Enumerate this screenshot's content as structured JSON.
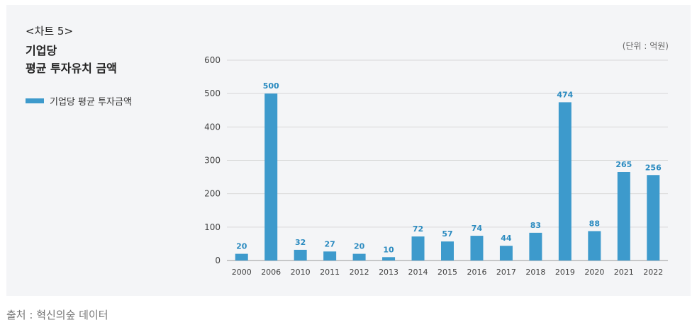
{
  "chart_label": "<차트 5>",
  "title_lines": [
    "기업당",
    "평균 투자유치 금액"
  ],
  "unit": "(단위 : 억원)",
  "source": "출처 : 혁신의숲 데이터",
  "colors": {
    "bar": "#3d9acc",
    "label": "#2b8bc0",
    "grid": "#d8d8d8",
    "panel": "#f4f5f7"
  },
  "chart_data": {
    "type": "bar",
    "title": "기업당 평균 투자유치 금액",
    "categories": [
      "2000",
      "2006",
      "2010",
      "2011",
      "2012",
      "2013",
      "2014",
      "2015",
      "2016",
      "2017",
      "2018",
      "2019",
      "2020",
      "2021",
      "2022"
    ],
    "series": [
      {
        "name": "기업당 평균 투자금액",
        "values": [
          20,
          500,
          32,
          27,
          20,
          10,
          72,
          57,
          74,
          44,
          83,
          474,
          88,
          265,
          256
        ],
        "value_labels": [
          "20",
          "500",
          "32",
          "27",
          "20",
          "10",
          "72",
          "57",
          "74",
          "44",
          "83",
          "474",
          "88",
          "265",
          "256"
        ]
      }
    ],
    "yticks": [
      0,
      100,
      200,
      300,
      400,
      500,
      600
    ],
    "ylim": [
      0,
      600
    ],
    "grid": true,
    "legend_position": "left"
  }
}
